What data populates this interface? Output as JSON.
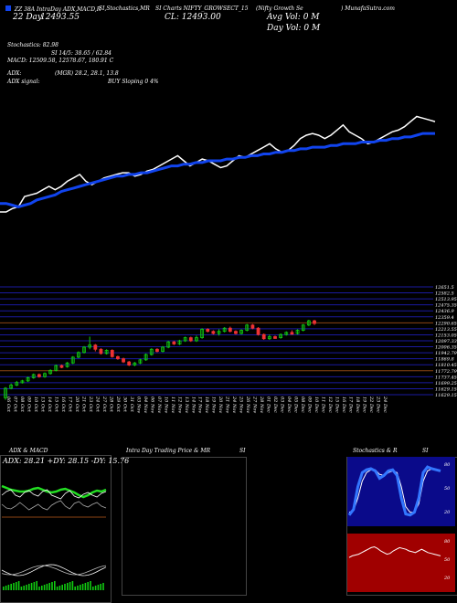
{
  "header": {
    "line1_left": "ZZ 38A IntraDay ADX,MACD,R",
    "line1_mid": "SI,Stochastics,MR",
    "line1_mid2": "SI Charts NIFTY_GROWSECT_15",
    "line1_right": "(Nifty Growth Se",
    "line1_far": ") MunafaSutra.com",
    "date_label": "22 Day",
    "date_value": "12493.55",
    "close_label": "CL: 12493.00",
    "avg_vol": "Avg Vol: 0   M",
    "day_vol": "Day Vol: 0   M"
  },
  "stats": {
    "stoch": "Stochastics: 82.98",
    "rsi": "SI 14/5: 38.65 / 62.84",
    "macd": "MACD: 12509.58,  12578.67,  180.91 C",
    "adx": "ADX:",
    "adx_vals": "(MGR) 28.2,  28.1,  13.8",
    "adx_signal": "ADX  signal:",
    "adx_signal_val": "BUY Sloping 0 4%"
  },
  "colors": {
    "bg": "#000000",
    "up": "#11cc11",
    "down": "#ee3333",
    "ma": "#1144ee",
    "price_line": "#ffffff",
    "level": "#8b4513",
    "grid": "#1a1aa0"
  },
  "chart_data": [
    {
      "type": "line",
      "series": [
        {
          "values": [
            55,
            55,
            57,
            58,
            64,
            65,
            66,
            68,
            70,
            68,
            70,
            73,
            75,
            77,
            73,
            71,
            73,
            75,
            76,
            77,
            78,
            78,
            76,
            77,
            79,
            80,
            82,
            84,
            86,
            88,
            85,
            82,
            84,
            86,
            85,
            83,
            81,
            82,
            85,
            88,
            87,
            89,
            91,
            93,
            95,
            92,
            90,
            91,
            94,
            98,
            100,
            101,
            100,
            98,
            100,
            103,
            106,
            102,
            100,
            98,
            95,
            96,
            98,
            100,
            102,
            103,
            105,
            108,
            111,
            110,
            109,
            108
          ]
        },
        {
          "values": [
            60,
            60,
            59,
            58,
            59,
            60,
            62,
            63,
            64,
            65,
            67,
            68,
            69,
            70,
            71,
            72,
            73,
            74,
            75,
            76,
            76,
            77,
            77,
            78,
            78,
            79,
            80,
            81,
            82,
            82,
            83,
            83,
            84,
            84,
            85,
            85,
            85,
            86,
            86,
            87,
            87,
            88,
            88,
            89,
            89,
            90,
            90,
            91,
            91,
            92,
            92,
            93,
            93,
            93,
            94,
            94,
            95,
            95,
            95,
            96,
            96,
            96,
            97,
            97,
            98,
            98,
            99,
            99,
            100,
            101,
            101,
            101
          ]
        }
      ]
    },
    {
      "type": "candlestick",
      "xlabels": [
        "06 Oct",
        "07 Oct",
        "08 Oct",
        "09 Oct",
        "10 Oct",
        "13 Oct",
        "14 Oct",
        "15 Oct",
        "16 Oct",
        "17 Oct",
        "20 Oct",
        "21 Oct",
        "23 Oct",
        "24 Oct",
        "27 Oct",
        "28 Oct",
        "29 Oct",
        "30 Oct",
        "31 Oct",
        "03 Nov",
        "04 Nov",
        "06 Nov",
        "07 Nov",
        "10 Nov",
        "11 Nov",
        "12 Nov",
        "13 Nov",
        "14 Nov",
        "17 Nov",
        "18 Nov",
        "19 Nov",
        "20 Nov",
        "21 Nov",
        "24 Nov",
        "25 Nov",
        "26 Nov",
        "27 Nov",
        "28 Nov",
        "01 Dec",
        "02 Dec",
        "03 Dec",
        "04 Dec",
        "05 Dec",
        "08 Dec",
        "09 Dec",
        "10 Dec",
        "11 Dec",
        "12 Dec",
        "15 Dec",
        "16 Dec",
        "17 Dec",
        "18 Dec",
        "19 Dec",
        "22 Dec",
        "23 Dec",
        "24 Dec"
      ],
      "yticks": [
        "12651.5",
        "12582.5",
        "12513.95",
        "12475.35",
        "12436.9",
        "12359.4",
        "12290.65",
        "12213.55",
        "12153.05",
        "12097.33",
        "12006.35",
        "11942.79",
        "11869.8",
        "11810.45",
        "11772.79",
        "11737.45",
        "11699.25",
        "11629.15",
        "11629.15"
      ],
      "ylim": [
        11629,
        12652
      ],
      "candles": [
        [
          11600,
          11690,
          11580,
          11700
        ],
        [
          11690,
          11720,
          11680,
          11735
        ],
        [
          11720,
          11745,
          11710,
          11760
        ],
        [
          11745,
          11760,
          11735,
          11770
        ],
        [
          11760,
          11790,
          11750,
          11800
        ],
        [
          11790,
          11820,
          11780,
          11830
        ],
        [
          11820,
          11800,
          11790,
          11830
        ],
        [
          11800,
          11830,
          11790,
          11840
        ],
        [
          11830,
          11860,
          11820,
          11870
        ],
        [
          11860,
          11905,
          11850,
          11915
        ],
        [
          11905,
          11895,
          11880,
          11915
        ],
        [
          11895,
          11930,
          11885,
          11940
        ],
        [
          11930,
          11985,
          11920,
          11995
        ],
        [
          11985,
          12030,
          11975,
          12040
        ],
        [
          12030,
          12080,
          12020,
          12090
        ],
        [
          12080,
          12100,
          12060,
          12180
        ],
        [
          12100,
          12060,
          12040,
          12110
        ],
        [
          12060,
          12020,
          12010,
          12070
        ],
        [
          12020,
          12050,
          12010,
          12060
        ],
        [
          12050,
          11990,
          11980,
          12060
        ],
        [
          11990,
          11970,
          11960,
          12000
        ],
        [
          11970,
          11940,
          11930,
          11980
        ],
        [
          11940,
          11910,
          11900,
          11950
        ],
        [
          11910,
          11930,
          11900,
          11940
        ],
        [
          11930,
          11960,
          11920,
          11970
        ],
        [
          11960,
          12010,
          11950,
          12020
        ],
        [
          12010,
          12060,
          12000,
          12070
        ],
        [
          12060,
          12040,
          12030,
          12070
        ],
        [
          12040,
          12080,
          12030,
          12090
        ],
        [
          12080,
          12130,
          12070,
          12140
        ],
        [
          12130,
          12110,
          12100,
          12140
        ],
        [
          12110,
          12140,
          12100,
          12150
        ],
        [
          12140,
          12170,
          12130,
          12180
        ],
        [
          12170,
          12140,
          12130,
          12180
        ],
        [
          12140,
          12170,
          12130,
          12190
        ],
        [
          12170,
          12250,
          12160,
          12260
        ],
        [
          12250,
          12230,
          12220,
          12260
        ],
        [
          12230,
          12210,
          12200,
          12240
        ],
        [
          12210,
          12230,
          12190,
          12250
        ],
        [
          12230,
          12260,
          12220,
          12270
        ],
        [
          12260,
          12230,
          12220,
          12275
        ],
        [
          12230,
          12210,
          12200,
          12240
        ],
        [
          12210,
          12240,
          12200,
          12250
        ],
        [
          12240,
          12290,
          12230,
          12300
        ],
        [
          12290,
          12260,
          12250,
          12300
        ],
        [
          12260,
          12200,
          12190,
          12270
        ],
        [
          12200,
          12160,
          12150,
          12210
        ],
        [
          12160,
          12180,
          12150,
          12200
        ],
        [
          12180,
          12170,
          12160,
          12190
        ],
        [
          12170,
          12200,
          12160,
          12210
        ],
        [
          12200,
          12220,
          12190,
          12230
        ],
        [
          12220,
          12210,
          12200,
          12240
        ],
        [
          12210,
          12240,
          12200,
          12250
        ],
        [
          12240,
          12290,
          12230,
          12300
        ],
        [
          12290,
          12330,
          12280,
          12340
        ],
        [
          12330,
          12305,
          12290,
          12340
        ]
      ]
    },
    {
      "type": "line",
      "title": "ADX  & MACD",
      "label": "ADX: 28.21 +DY: 28.15 -DY: 15.76",
      "series": [
        {
          "name": "adx",
          "values": [
            40,
            38,
            36,
            35,
            34,
            34,
            35,
            37,
            38,
            36,
            34,
            33,
            34,
            36,
            37,
            35,
            33,
            30,
            28,
            30,
            33,
            35,
            34,
            36
          ]
        },
        {
          "name": "dip",
          "values": [
            30,
            34,
            36,
            30,
            28,
            33,
            35,
            31,
            29,
            34,
            36,
            30,
            28,
            26,
            32,
            35,
            29,
            27,
            31,
            33,
            30,
            28,
            32,
            34
          ]
        },
        {
          "name": "dim",
          "values": [
            20,
            16,
            15,
            18,
            22,
            18,
            14,
            17,
            20,
            16,
            14,
            19,
            22,
            24,
            18,
            15,
            21,
            23,
            19,
            17,
            20,
            22,
            18,
            16
          ]
        }
      ]
    },
    {
      "type": "line",
      "title": "Intra  Day Trading Price  & MR",
      "title2": "SI",
      "series": []
    },
    {
      "type": "line",
      "title": "Stochastics & R",
      "title2": "SI",
      "ylabels": [
        "80",
        "50",
        "20"
      ],
      "series": [
        {
          "name": "stoch_k",
          "values": [
            10,
            20,
            60,
            85,
            90,
            92,
            88,
            75,
            80,
            88,
            90,
            80,
            40,
            12,
            10,
            15,
            40,
            85,
            95,
            92,
            90,
            88
          ]
        },
        {
          "name": "stoch_d",
          "values": [
            15,
            18,
            40,
            70,
            85,
            90,
            90,
            82,
            80,
            85,
            88,
            85,
            60,
            25,
            15,
            15,
            30,
            70,
            88,
            92,
            91,
            89
          ]
        }
      ]
    },
    {
      "type": "line",
      "ylabels": [
        "80",
        "50",
        "20"
      ],
      "series": [
        {
          "name": "rsi",
          "values": [
            42,
            44,
            45,
            46,
            48,
            50,
            52,
            54,
            55,
            53,
            50,
            48,
            46,
            47,
            50,
            52,
            54,
            53,
            52,
            50,
            49,
            48,
            50,
            52,
            50,
            48,
            47,
            46,
            45,
            44
          ]
        }
      ]
    }
  ]
}
